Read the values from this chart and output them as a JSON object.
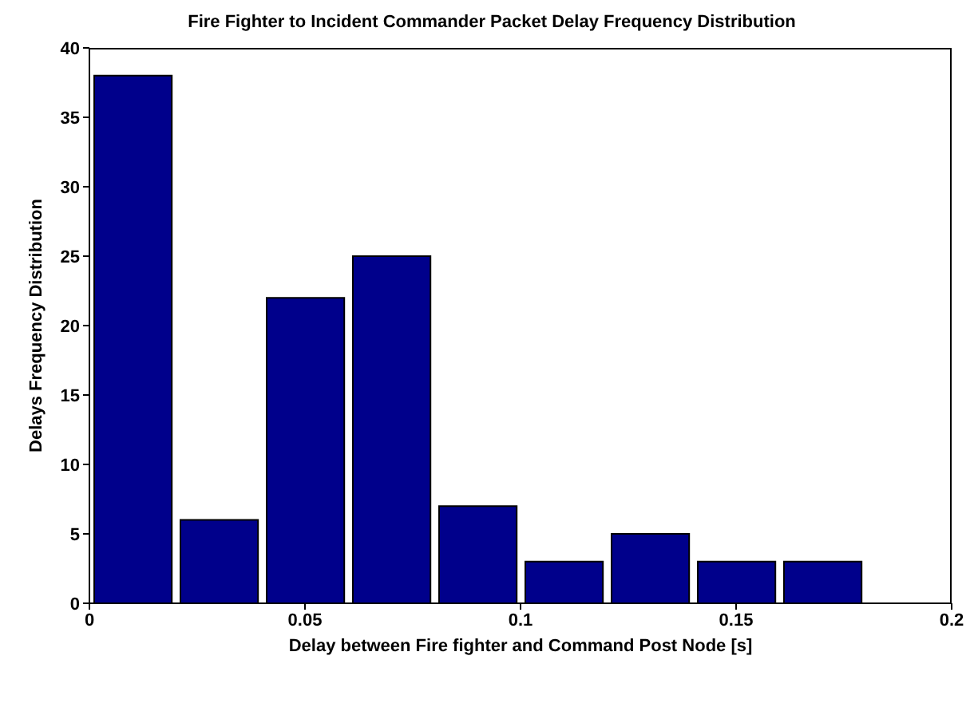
{
  "chart_data": {
    "type": "histogram",
    "title": "Fire Fighter to Incident Commander Packet Delay Frequency Distribution",
    "xlabel": "Delay between Fire fighter and Command Post Node [s]",
    "ylabel": "Delays Frequency Distribution",
    "bins": [
      0,
      0.02,
      0.04,
      0.06,
      0.08,
      0.1,
      0.12,
      0.14,
      0.16,
      0.18
    ],
    "values": [
      38,
      6,
      22,
      25,
      7,
      3,
      5,
      3,
      3
    ],
    "color": "#00008b",
    "xlim": [
      0,
      0.2
    ],
    "xticks": [
      0,
      0.05,
      0.1,
      0.15,
      0.2
    ],
    "ylim": [
      0,
      40
    ],
    "yticks": [
      0,
      5,
      10,
      15,
      20,
      25,
      30,
      35,
      40
    ]
  }
}
